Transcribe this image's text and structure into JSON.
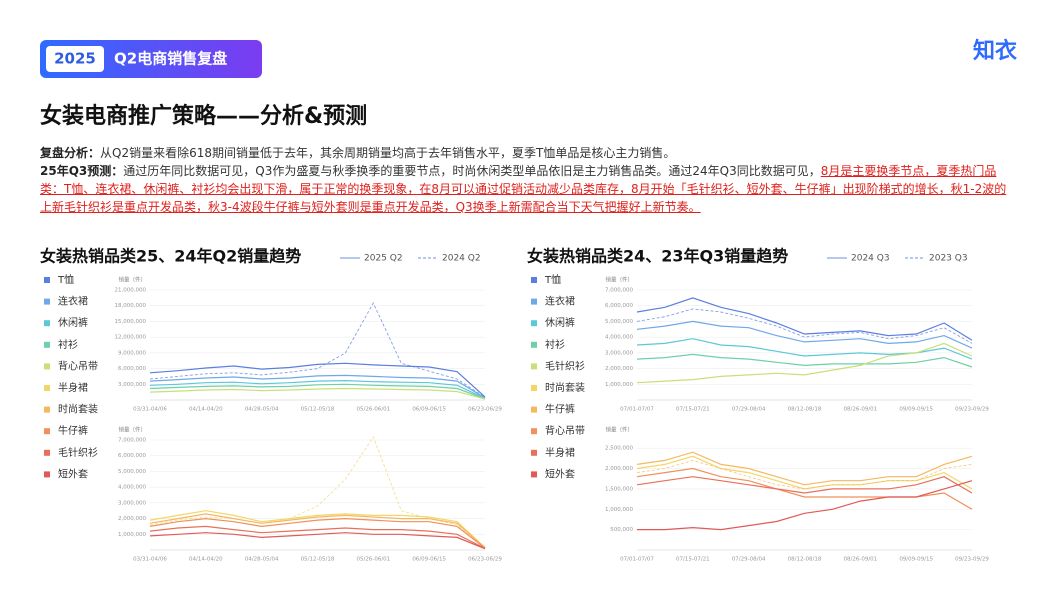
{
  "header": {
    "year": "2025",
    "title": "Q2电商销售复盘",
    "logo": "知衣"
  },
  "title": "女装电商推广策略——分析&预测",
  "analysis": {
    "label": "复盘分析：",
    "text": "从Q2销量来看除618期间销量低于去年，其余周期销量均高于去年销售水平，夏季T恤单品是核心主力销售。"
  },
  "forecast": {
    "label": "25年Q3预测：",
    "text": "通过历年同比数据可见，Q3作为盛夏与秋季换季的重要节点，时尚休闲类型单品依旧是主力销售品类。通过24年Q3同比数据可见，",
    "highlight": "8月是主要换季节点，夏季热门品类：T恤、连衣裙、休闲裤、衬衫均会出现下滑，属于正常的换季现象，在8月可以通过促销活动减少品类库存，8月开始「毛针织衫、短外套、牛仔裤」出现阶梯式的增长，秋1-2波的上新毛针织衫是重点开发品类，秋3-4波段牛仔裤与短外套则是重点开发品类，Q3换季上新需配合当下天气把握好上新节奏。"
  },
  "chart_data": [
    {
      "type": "line",
      "title": "女装热销品类25、24年Q2销量趋势",
      "line_styles": [
        "2025 Q2",
        "2024 Q2"
      ],
      "categories": [
        "03/31-04/06",
        null,
        "04/14-04/20",
        null,
        "04/28-05/04",
        null,
        "05/12-05/18",
        null,
        "05/26-06/01",
        null,
        "06/09-06/15",
        null,
        "06/23-06/29"
      ],
      "subplots": [
        {
          "ylabel": "销量（件）",
          "ylim": [
            0,
            21000000
          ],
          "yticks": [
            {
              "value": 3000000,
              "label": "3,000,000"
            },
            {
              "value": 6000000,
              "label": "6,000,000"
            },
            {
              "value": 9000000,
              "label": "9,000,000"
            },
            {
              "value": 12000000,
              "label": "12,000,000"
            },
            {
              "value": 15000000,
              "label": "15,000,000"
            },
            {
              "value": 18000000,
              "label": "18,000,000"
            },
            {
              "value": 21000000,
              "label": "21,000,000"
            }
          ]
        },
        {
          "ylabel": "销量（件）",
          "ylim": [
            0,
            7000000
          ],
          "yticks": [
            {
              "value": 1000000,
              "label": "1,000,000"
            },
            {
              "value": 2000000,
              "label": "2,000,000"
            },
            {
              "value": 3000000,
              "label": "3,000,000"
            },
            {
              "value": 4000000,
              "label": "4,000,000"
            },
            {
              "value": 5000000,
              "label": "5,000,000"
            },
            {
              "value": 6000000,
              "label": "6,000,000"
            },
            {
              "value": 7000000,
              "label": "7,000,000"
            }
          ]
        }
      ],
      "series": [
        {
          "name": "T恤",
          "color": "#5b7fe0",
          "subplot": 0,
          "values": [
            5200000,
            5600000,
            6100000,
            6500000,
            5900000,
            6200000,
            6800000,
            7000000,
            6700000,
            6500000,
            6300000,
            5400000,
            600000
          ],
          "values_prior": [
            4000000,
            4500000,
            5000000,
            5200000,
            4800000,
            5300000,
            6000000,
            9000000,
            18500000,
            7000000,
            5500000,
            4000000,
            500000
          ]
        },
        {
          "name": "连衣裙",
          "color": "#6fa8e8",
          "subplot": 0,
          "values": [
            3600000,
            3900000,
            4200000,
            4400000,
            4000000,
            4200000,
            4600000,
            4700000,
            4500000,
            4300000,
            4200000,
            3600000,
            400000
          ]
        },
        {
          "name": "休闲裤",
          "color": "#5bc8d8",
          "subplot": 0,
          "values": [
            2800000,
            3000000,
            3300000,
            3400000,
            3100000,
            3300000,
            3600000,
            3700000,
            3500000,
            3400000,
            3300000,
            2800000,
            300000
          ]
        },
        {
          "name": "衬衫",
          "color": "#6dd0a8",
          "subplot": 0,
          "values": [
            2200000,
            2400000,
            2600000,
            2700000,
            2500000,
            2600000,
            2900000,
            3000000,
            2800000,
            2700000,
            2600000,
            2200000,
            250000
          ]
        },
        {
          "name": "背心吊带",
          "color": "#c8e07a",
          "subplot": 0,
          "values": [
            1500000,
            1700000,
            1900000,
            2000000,
            1800000,
            1900000,
            2100000,
            2200000,
            2100000,
            2000000,
            1900000,
            1600000,
            200000
          ]
        },
        {
          "name": "半身裙",
          "color": "#f2d66a",
          "subplot": 1,
          "values": [
            1900000,
            2200000,
            2500000,
            2200000,
            1800000,
            2000000,
            2200000,
            2300000,
            2200000,
            2200000,
            2100000,
            1800000,
            150000
          ],
          "values_prior": [
            1600000,
            1900000,
            2100000,
            2000000,
            1700000,
            2000000,
            2800000,
            4500000,
            7200000,
            2500000,
            2000000,
            1600000,
            100000
          ]
        },
        {
          "name": "时尚套装",
          "color": "#f5b860",
          "subplot": 1,
          "values": [
            1700000,
            2000000,
            2300000,
            2000000,
            1700000,
            1900000,
            2100000,
            2200000,
            2100000,
            2000000,
            2000000,
            1700000,
            150000
          ]
        },
        {
          "name": "牛仔裤",
          "color": "#f0905a",
          "subplot": 1,
          "values": [
            1500000,
            1800000,
            2000000,
            1800000,
            1500000,
            1700000,
            1900000,
            2000000,
            1900000,
            1800000,
            1800000,
            1500000,
            120000
          ]
        },
        {
          "name": "毛针织衫",
          "color": "#e8705a",
          "subplot": 1,
          "values": [
            1200000,
            1400000,
            1500000,
            1300000,
            1100000,
            1200000,
            1300000,
            1400000,
            1300000,
            1300000,
            1200000,
            1000000,
            100000
          ]
        },
        {
          "name": "短外套",
          "color": "#e05a5a",
          "subplot": 1,
          "values": [
            900000,
            1000000,
            1100000,
            1000000,
            800000,
            900000,
            1000000,
            1100000,
            1000000,
            1000000,
            900000,
            800000,
            80000
          ]
        }
      ]
    },
    {
      "type": "line",
      "title": "女装热销品类24、23年Q3销量趋势",
      "line_styles": [
        "2024 Q3",
        "2023 Q3"
      ],
      "categories": [
        "07/01-07/07",
        null,
        "07/15-07/21",
        null,
        "07/29-08/04",
        null,
        "08/12-08/18",
        null,
        "08/26-09/01",
        null,
        "09/09-09/15",
        null,
        "09/23-09/29"
      ],
      "subplots": [
        {
          "ylabel": "销量（件）",
          "ylim": [
            0,
            7000000
          ],
          "yticks": [
            {
              "value": 1000000,
              "label": "1,000,000"
            },
            {
              "value": 2000000,
              "label": "2,000,000"
            },
            {
              "value": 3000000,
              "label": "3,000,000"
            },
            {
              "value": 4000000,
              "label": "4,000,000"
            },
            {
              "value": 5000000,
              "label": "5,000,000"
            },
            {
              "value": 6000000,
              "label": "6,000,000"
            },
            {
              "value": 7000000,
              "label": "7,000,000"
            }
          ]
        },
        {
          "ylabel": "销量（件）",
          "ylim": [
            0,
            2700000
          ],
          "yticks": [
            {
              "value": 500000,
              "label": "500,000"
            },
            {
              "value": 1000000,
              "label": "1,000,000"
            },
            {
              "value": 1500000,
              "label": "1,500,000"
            },
            {
              "value": 2000000,
              "label": "2,000,000"
            },
            {
              "value": 2500000,
              "label": "2,500,000"
            }
          ]
        }
      ],
      "series": [
        {
          "name": "T恤",
          "color": "#5b7fe0",
          "subplot": 0,
          "values": [
            5600000,
            5900000,
            6500000,
            5900000,
            5500000,
            4900000,
            4200000,
            4300000,
            4400000,
            4100000,
            4200000,
            4900000,
            3800000
          ],
          "values_prior": [
            5000000,
            5300000,
            5800000,
            5600000,
            5200000,
            4700000,
            4000000,
            4200000,
            4300000,
            3900000,
            4100000,
            4600000,
            3600000
          ]
        },
        {
          "name": "连衣裙",
          "color": "#6fa8e8",
          "subplot": 0,
          "values": [
            4500000,
            4700000,
            5000000,
            4700000,
            4600000,
            4100000,
            3700000,
            3800000,
            3900000,
            3600000,
            3700000,
            4100000,
            3300000
          ]
        },
        {
          "name": "休闲裤",
          "color": "#5bc8d8",
          "subplot": 0,
          "values": [
            3500000,
            3600000,
            3900000,
            3500000,
            3400000,
            3100000,
            2800000,
            2900000,
            3000000,
            2900000,
            3000000,
            3300000,
            2600000
          ]
        },
        {
          "name": "衬衫",
          "color": "#6dd0a8",
          "subplot": 0,
          "values": [
            2600000,
            2700000,
            2900000,
            2700000,
            2600000,
            2400000,
            2200000,
            2300000,
            2300000,
            2300000,
            2400000,
            2700000,
            2100000
          ]
        },
        {
          "name": "毛针织衫",
          "color": "#c8e07a",
          "subplot": 0,
          "values": [
            1100000,
            1200000,
            1300000,
            1500000,
            1600000,
            1700000,
            1600000,
            1900000,
            2200000,
            2800000,
            3000000,
            3600000,
            2800000
          ]
        },
        {
          "name": "时尚套装",
          "color": "#f2d66a",
          "subplot": 1,
          "values": [
            2000000,
            2100000,
            2300000,
            2000000,
            1900000,
            1700000,
            1500000,
            1600000,
            1600000,
            1700000,
            1700000,
            1900000,
            1500000
          ]
        },
        {
          "name": "牛仔裤",
          "color": "#f5b860",
          "subplot": 1,
          "values": [
            2100000,
            2200000,
            2400000,
            2100000,
            2000000,
            1800000,
            1600000,
            1700000,
            1700000,
            1800000,
            1800000,
            2100000,
            2300000
          ],
          "values_prior": [
            1900000,
            2000000,
            2200000,
            2000000,
            1800000,
            1600000,
            1500000,
            1600000,
            1600000,
            1700000,
            1700000,
            2000000,
            2100000
          ]
        },
        {
          "name": "背心吊带",
          "color": "#f0905a",
          "subplot": 1,
          "values": [
            1800000,
            1900000,
            2000000,
            1800000,
            1700000,
            1500000,
            1300000,
            1300000,
            1300000,
            1300000,
            1300000,
            1400000,
            1000000
          ]
        },
        {
          "name": "半身裙",
          "color": "#e8705a",
          "subplot": 1,
          "values": [
            1600000,
            1700000,
            1800000,
            1700000,
            1600000,
            1500000,
            1400000,
            1500000,
            1500000,
            1500000,
            1600000,
            1800000,
            1400000
          ]
        },
        {
          "name": "短外套",
          "color": "#e05a5a",
          "subplot": 1,
          "values": [
            500000,
            500000,
            550000,
            500000,
            600000,
            700000,
            900000,
            1000000,
            1200000,
            1300000,
            1300000,
            1500000,
            1700000
          ]
        }
      ]
    }
  ]
}
